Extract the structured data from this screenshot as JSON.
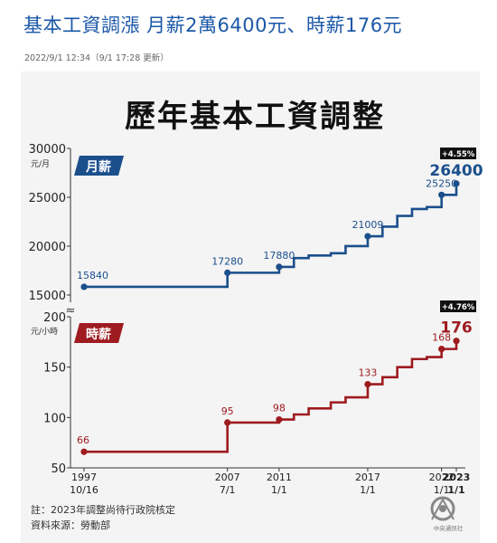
{
  "article": {
    "headline": "基本工資調漲 月薪2萬6400元、時薪176元",
    "dateline": "2022/9/1 12:34（9/1 17:28 更新）"
  },
  "chart_data": {
    "type": "line",
    "title": "歷年基本工資調整",
    "x_labels": [
      {
        "year": "1997",
        "date": "10/16",
        "pos": 1997.79
      },
      {
        "year": "2007",
        "date": "7/1",
        "pos": 2007.5
      },
      {
        "year": "2011",
        "date": "1/1",
        "pos": 2011.0
      },
      {
        "year": "2017",
        "date": "1/1",
        "pos": 2017.0
      },
      {
        "year": "2022",
        "date": "1/1",
        "pos": 2022.0
      },
      {
        "year": "2023",
        "date": "1/1",
        "pos": 2023.0
      }
    ],
    "monthly": {
      "name": "月薪",
      "unit": "元/月",
      "color": "#1b4f8c",
      "ylim": [
        15000,
        30000
      ],
      "yticks": [
        "15000",
        "20000",
        "25000",
        "30000"
      ],
      "ytick_values": [
        15000,
        20000,
        25000,
        30000
      ],
      "badge": "+4.55%",
      "points": [
        {
          "x": 1997.79,
          "y": 15840,
          "label": "15840"
        },
        {
          "x": 2007.5,
          "y": 17280,
          "label": "17280"
        },
        {
          "x": 2011.0,
          "y": 17880,
          "label": "17880"
        },
        {
          "x": 2012.0,
          "y": 18780
        },
        {
          "x": 2013.0,
          "y": 19047
        },
        {
          "x": 2014.5,
          "y": 19273
        },
        {
          "x": 2015.5,
          "y": 20008
        },
        {
          "x": 2017.0,
          "y": 21009,
          "label": "21009"
        },
        {
          "x": 2018.0,
          "y": 22000
        },
        {
          "x": 2019.0,
          "y": 23100
        },
        {
          "x": 2020.0,
          "y": 23800
        },
        {
          "x": 2021.0,
          "y": 24000
        },
        {
          "x": 2022.0,
          "y": 25250,
          "label": "25250"
        },
        {
          "x": 2023.0,
          "y": 26400,
          "label": "26400",
          "highlight": true
        }
      ]
    },
    "hourly": {
      "name": "時薪",
      "unit": "元/小時",
      "color": "#9e1b20",
      "ylim": [
        50,
        200
      ],
      "yticks": [
        "50",
        "100",
        "150",
        "200"
      ],
      "ytick_values": [
        50,
        100,
        150,
        200
      ],
      "badge": "+4.76%",
      "points": [
        {
          "x": 1997.79,
          "y": 66,
          "label": "66"
        },
        {
          "x": 2007.5,
          "y": 95,
          "label": "95"
        },
        {
          "x": 2011.0,
          "y": 98,
          "label": "98"
        },
        {
          "x": 2012.0,
          "y": 103
        },
        {
          "x": 2013.0,
          "y": 109
        },
        {
          "x": 2014.5,
          "y": 115
        },
        {
          "x": 2015.5,
          "y": 120
        },
        {
          "x": 2017.0,
          "y": 133,
          "label": "133"
        },
        {
          "x": 2018.0,
          "y": 140
        },
        {
          "x": 2019.0,
          "y": 150
        },
        {
          "x": 2020.0,
          "y": 158
        },
        {
          "x": 2021.0,
          "y": 160
        },
        {
          "x": 2022.0,
          "y": 168,
          "label": "168"
        },
        {
          "x": 2023.0,
          "y": 176,
          "label": "176",
          "highlight": true
        }
      ]
    },
    "axis_break": "≈",
    "notes": [
      "註：2023年調整尚待行政院核定",
      "資料來源：勞動部"
    ],
    "logo_text": "中央通訊社"
  }
}
